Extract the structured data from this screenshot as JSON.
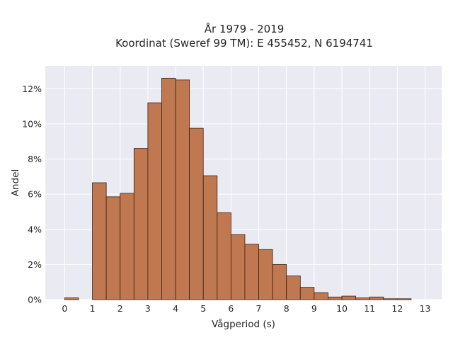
{
  "chart_data": {
    "type": "bar",
    "title": "År 1979 - 2019",
    "subtitle": "Koordinat (Sweref 99 TM): E 455452, N 6194741",
    "xlabel": "Vågperiod (s)",
    "ylabel": "Andel",
    "bin_width": 0.5,
    "x": [
      0,
      1,
      1.5,
      2,
      2.5,
      3,
      3.5,
      4,
      4.5,
      5,
      5.5,
      6,
      6.5,
      7,
      7.5,
      8,
      8.5,
      9,
      9.5,
      10,
      10.5,
      11,
      11.5,
      12,
      12.5
    ],
    "values": [
      0.1,
      6.65,
      5.85,
      6.05,
      8.6,
      11.2,
      12.6,
      12.5,
      9.75,
      7.05,
      4.95,
      3.7,
      3.15,
      2.85,
      2.0,
      1.35,
      0.7,
      0.4,
      0.15,
      0.2,
      0.1,
      0.15,
      0.05,
      0.05,
      0.0
    ],
    "xlim": [
      -0.7,
      13.6
    ],
    "ylim": [
      0,
      13.3
    ],
    "xticks": [
      0,
      1,
      2,
      3,
      4,
      5,
      6,
      7,
      8,
      9,
      10,
      11,
      12,
      13
    ],
    "xtick_labels": [
      "0",
      "1",
      "2",
      "3",
      "4",
      "5",
      "6",
      "7",
      "8",
      "9",
      "10",
      "11",
      "12",
      "13"
    ],
    "yticks": [
      0,
      2,
      4,
      6,
      8,
      10,
      12
    ],
    "ytick_labels": [
      "0%",
      "2%",
      "4%",
      "6%",
      "8%",
      "10%",
      "12%"
    ],
    "y_unit": "percent",
    "grid": true,
    "colors": {
      "bar_fill": "#c07850",
      "bar_edge": "#3a2216",
      "plot_bg": "#eaeaf2",
      "grid": "#ffffff"
    }
  }
}
